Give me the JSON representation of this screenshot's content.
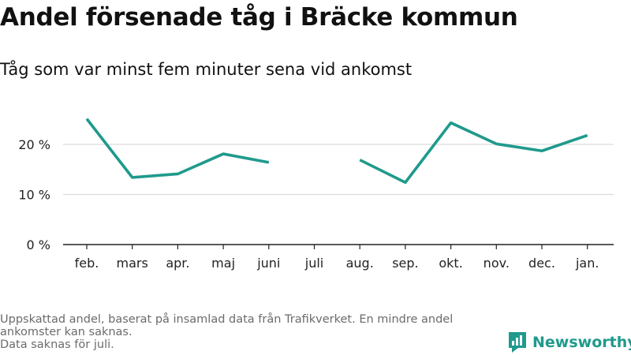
{
  "title": "Andel försenade tåg i Bräcke kommun",
  "subtitle": "Tåg som var minst fem minuter sena vid ankomst",
  "chart_data": {
    "type": "line",
    "categories": [
      "feb.",
      "mars",
      "apr.",
      "maj",
      "juni",
      "juli",
      "aug.",
      "sep.",
      "okt.",
      "nov.",
      "dec.",
      "jan."
    ],
    "series": [
      {
        "values": [
          25.1,
          13.4,
          14.1,
          18.1,
          16.4,
          null,
          16.9,
          12.4,
          24.3,
          20.1,
          18.7,
          21.8
        ]
      }
    ],
    "y_ticks": [
      "0 %",
      "10 %",
      "20 %"
    ],
    "ylim": [
      0,
      30
    ],
    "grid": "horizontal",
    "line_color": "#1f9a8c"
  },
  "footnote": {
    "lines": [
      "Uppskattad andel, baserat på insamlad data från Trafikverket. En mindre andel",
      "ankomster kan saknas.",
      "Data saknas för juli."
    ]
  },
  "brand": {
    "name": "Newsworthy",
    "icon": "newsworthy-logo-icon",
    "color": "#1f9a8c"
  }
}
